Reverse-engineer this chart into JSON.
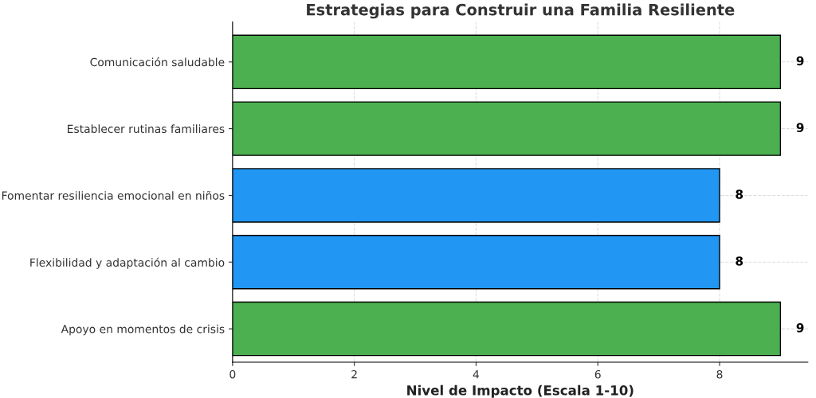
{
  "chart_data": {
    "type": "bar",
    "orientation": "horizontal",
    "title": "Estrategias para Construir una Familia Resiliente",
    "xlabel": "Nivel de Impacto (Escala 1-10)",
    "categories": [
      "Comunicación saludable",
      "Establecer rutinas familiares",
      "Fomentar resiliencia emocional en niños",
      "Flexibilidad y adaptación al cambio",
      "Apoyo en momentos de crisis"
    ],
    "values": [
      9,
      9,
      8,
      8,
      9
    ],
    "colors": [
      "#4caf50",
      "#4caf50",
      "#2196f3",
      "#2196f3",
      "#4caf50"
    ],
    "xlim": [
      0,
      9.45
    ],
    "xticks": [
      0,
      2,
      4,
      6,
      8
    ],
    "grid": true,
    "data_labels": true
  }
}
